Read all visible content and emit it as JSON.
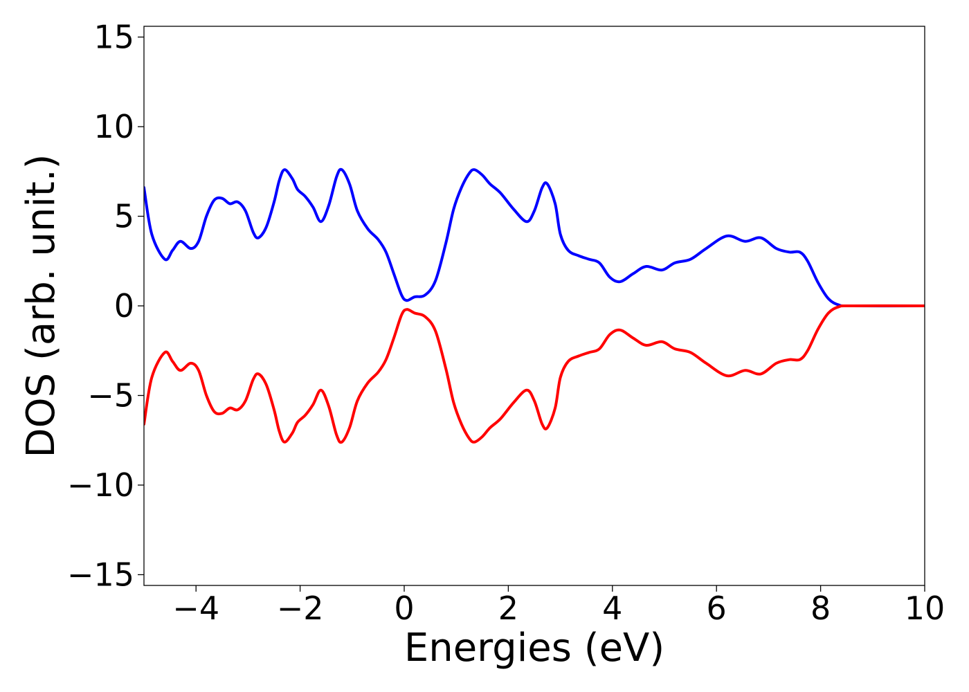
{
  "chart_data": {
    "type": "line",
    "title": "",
    "xlabel": "Energies (eV)",
    "ylabel": "DOS (arb. unit.)",
    "xlim": [
      -5,
      10
    ],
    "ylim": [
      -15.6,
      15.6
    ],
    "grid": false,
    "legend": "none",
    "x_ticks": [
      -4,
      -2,
      0,
      2,
      4,
      6,
      8,
      10
    ],
    "x_tick_labels": [
      "−4",
      "−2",
      "0",
      "2",
      "4",
      "6",
      "8",
      "10"
    ],
    "y_ticks": [
      -15,
      -10,
      -5,
      0,
      5,
      10,
      15
    ],
    "y_tick_labels": [
      "−15",
      "−10",
      "−5",
      "0",
      "5",
      "10",
      "15"
    ],
    "series": [
      {
        "color": "#0000ff",
        "points": [
          [
            -5.0,
            6.6
          ],
          [
            -4.85,
            4.0
          ],
          [
            -4.6,
            2.6
          ],
          [
            -4.45,
            3.1
          ],
          [
            -4.3,
            3.6
          ],
          [
            -4.1,
            3.2
          ],
          [
            -3.95,
            3.6
          ],
          [
            -3.8,
            5.0
          ],
          [
            -3.65,
            5.9
          ],
          [
            -3.5,
            6.0
          ],
          [
            -3.35,
            5.7
          ],
          [
            -3.2,
            5.8
          ],
          [
            -3.05,
            5.3
          ],
          [
            -2.9,
            4.1
          ],
          [
            -2.8,
            3.8
          ],
          [
            -2.65,
            4.4
          ],
          [
            -2.5,
            5.8
          ],
          [
            -2.4,
            7.0
          ],
          [
            -2.3,
            7.6
          ],
          [
            -2.15,
            7.1
          ],
          [
            -2.05,
            6.5
          ],
          [
            -1.9,
            6.1
          ],
          [
            -1.75,
            5.5
          ],
          [
            -1.6,
            4.7
          ],
          [
            -1.45,
            5.6
          ],
          [
            -1.3,
            7.2
          ],
          [
            -1.2,
            7.6
          ],
          [
            -1.05,
            6.8
          ],
          [
            -0.9,
            5.3
          ],
          [
            -0.7,
            4.3
          ],
          [
            -0.5,
            3.7
          ],
          [
            -0.35,
            3.0
          ],
          [
            -0.2,
            1.8
          ],
          [
            -0.05,
            0.6
          ],
          [
            0.05,
            0.3
          ],
          [
            0.2,
            0.5
          ],
          [
            0.4,
            0.6
          ],
          [
            0.6,
            1.4
          ],
          [
            0.8,
            3.5
          ],
          [
            0.95,
            5.4
          ],
          [
            1.1,
            6.6
          ],
          [
            1.25,
            7.4
          ],
          [
            1.35,
            7.6
          ],
          [
            1.5,
            7.3
          ],
          [
            1.65,
            6.8
          ],
          [
            1.85,
            6.3
          ],
          [
            2.1,
            5.4
          ],
          [
            2.35,
            4.7
          ],
          [
            2.5,
            5.3
          ],
          [
            2.65,
            6.6
          ],
          [
            2.75,
            6.8
          ],
          [
            2.9,
            5.7
          ],
          [
            3.0,
            4.0
          ],
          [
            3.15,
            3.1
          ],
          [
            3.35,
            2.8
          ],
          [
            3.55,
            2.6
          ],
          [
            3.75,
            2.4
          ],
          [
            3.95,
            1.6
          ],
          [
            4.15,
            1.35
          ],
          [
            4.4,
            1.8
          ],
          [
            4.65,
            2.2
          ],
          [
            4.95,
            2.0
          ],
          [
            5.2,
            2.4
          ],
          [
            5.5,
            2.6
          ],
          [
            5.8,
            3.2
          ],
          [
            6.2,
            3.9
          ],
          [
            6.55,
            3.6
          ],
          [
            6.85,
            3.8
          ],
          [
            7.15,
            3.2
          ],
          [
            7.4,
            3.0
          ],
          [
            7.6,
            3.0
          ],
          [
            7.75,
            2.5
          ],
          [
            7.95,
            1.3
          ],
          [
            8.15,
            0.4
          ],
          [
            8.35,
            0.05
          ],
          [
            8.6,
            0.0
          ],
          [
            10.0,
            0.0
          ]
        ]
      },
      {
        "color": "#ff0000",
        "points": [
          [
            -5.0,
            -6.6
          ],
          [
            -4.85,
            -4.0
          ],
          [
            -4.6,
            -2.6
          ],
          [
            -4.45,
            -3.1
          ],
          [
            -4.3,
            -3.6
          ],
          [
            -4.1,
            -3.2
          ],
          [
            -3.95,
            -3.6
          ],
          [
            -3.8,
            -5.0
          ],
          [
            -3.65,
            -5.9
          ],
          [
            -3.5,
            -6.0
          ],
          [
            -3.35,
            -5.7
          ],
          [
            -3.2,
            -5.8
          ],
          [
            -3.05,
            -5.3
          ],
          [
            -2.9,
            -4.1
          ],
          [
            -2.8,
            -3.8
          ],
          [
            -2.65,
            -4.4
          ],
          [
            -2.5,
            -5.8
          ],
          [
            -2.4,
            -7.0
          ],
          [
            -2.3,
            -7.6
          ],
          [
            -2.15,
            -7.1
          ],
          [
            -2.05,
            -6.5
          ],
          [
            -1.9,
            -6.1
          ],
          [
            -1.75,
            -5.5
          ],
          [
            -1.6,
            -4.7
          ],
          [
            -1.45,
            -5.6
          ],
          [
            -1.3,
            -7.2
          ],
          [
            -1.2,
            -7.6
          ],
          [
            -1.05,
            -6.8
          ],
          [
            -0.9,
            -5.3
          ],
          [
            -0.7,
            -4.3
          ],
          [
            -0.5,
            -3.7
          ],
          [
            -0.35,
            -3.0
          ],
          [
            -0.2,
            -1.8
          ],
          [
            -0.05,
            -0.5
          ],
          [
            0.05,
            -0.2
          ],
          [
            0.2,
            -0.4
          ],
          [
            0.4,
            -0.6
          ],
          [
            0.6,
            -1.4
          ],
          [
            0.8,
            -3.5
          ],
          [
            0.95,
            -5.4
          ],
          [
            1.1,
            -6.6
          ],
          [
            1.25,
            -7.4
          ],
          [
            1.35,
            -7.6
          ],
          [
            1.5,
            -7.3
          ],
          [
            1.65,
            -6.8
          ],
          [
            1.85,
            -6.3
          ],
          [
            2.1,
            -5.4
          ],
          [
            2.35,
            -4.7
          ],
          [
            2.5,
            -5.3
          ],
          [
            2.65,
            -6.6
          ],
          [
            2.75,
            -6.8
          ],
          [
            2.9,
            -5.7
          ],
          [
            3.0,
            -4.0
          ],
          [
            3.15,
            -3.1
          ],
          [
            3.35,
            -2.8
          ],
          [
            3.55,
            -2.6
          ],
          [
            3.75,
            -2.4
          ],
          [
            3.95,
            -1.6
          ],
          [
            4.15,
            -1.35
          ],
          [
            4.4,
            -1.8
          ],
          [
            4.65,
            -2.2
          ],
          [
            4.95,
            -2.0
          ],
          [
            5.2,
            -2.4
          ],
          [
            5.5,
            -2.6
          ],
          [
            5.8,
            -3.2
          ],
          [
            6.2,
            -3.9
          ],
          [
            6.55,
            -3.6
          ],
          [
            6.85,
            -3.8
          ],
          [
            7.15,
            -3.2
          ],
          [
            7.4,
            -3.0
          ],
          [
            7.6,
            -3.0
          ],
          [
            7.75,
            -2.5
          ],
          [
            7.95,
            -1.3
          ],
          [
            8.15,
            -0.4
          ],
          [
            8.35,
            -0.05
          ],
          [
            8.6,
            0.0
          ],
          [
            10.0,
            0.0
          ]
        ]
      }
    ]
  }
}
